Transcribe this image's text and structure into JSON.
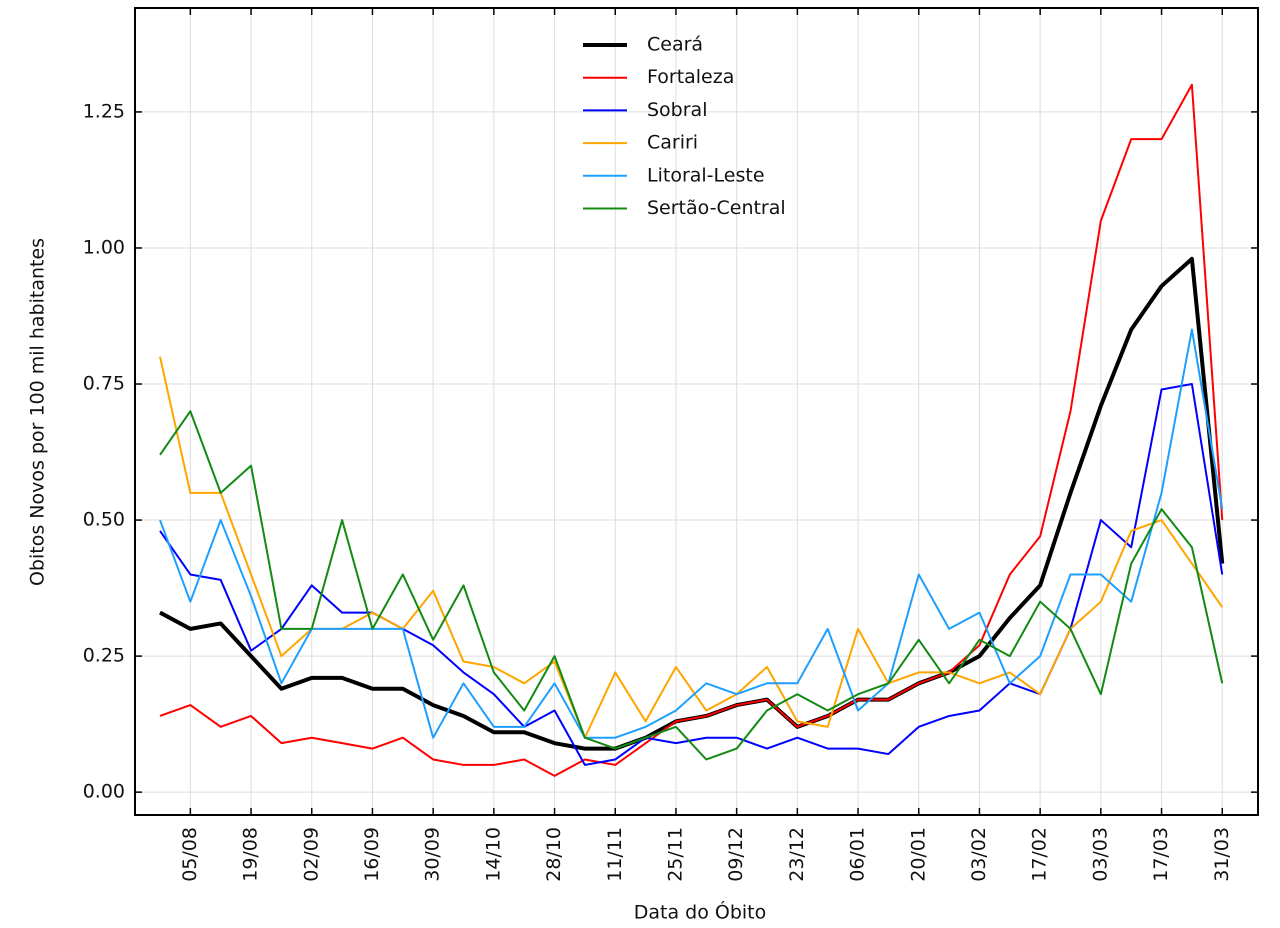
{
  "chart_data": {
    "type": "line",
    "x_label": "Data do Óbito",
    "y_label": "Obitos Novos por 100 mil habitantes",
    "categories": [
      null,
      "05/08",
      null,
      "19/08",
      null,
      "02/09",
      null,
      "16/09",
      null,
      "30/09",
      null,
      "14/10",
      null,
      "28/10",
      null,
      "11/11",
      null,
      "25/11",
      null,
      "09/12",
      null,
      "23/12",
      null,
      "06/01",
      null,
      "20/01",
      null,
      "03/02",
      null,
      "17/02",
      null,
      "03/03",
      null,
      "17/03",
      null,
      "31/03"
    ],
    "ylim": [
      -0.042,
      1.441
    ],
    "yticks": [
      {
        "value": 0,
        "label": "0.00"
      },
      {
        "value": 0.25,
        "label": "0.25"
      },
      {
        "value": 0.5,
        "label": "0.50"
      },
      {
        "value": 0.75,
        "label": "0.75"
      },
      {
        "value": 1,
        "label": "1.00"
      },
      {
        "value": 1.25,
        "label": "1.25"
      }
    ],
    "grid": true,
    "legend": "upper center",
    "series": [
      {
        "name": "Ceará",
        "color": "#000000",
        "values": [
          0.33,
          0.3,
          0.31,
          0.25,
          0.19,
          0.21,
          0.21,
          0.19,
          0.19,
          0.16,
          0.14,
          0.11,
          0.11,
          0.09,
          0.08,
          0.08,
          0.1,
          0.13,
          0.14,
          0.16,
          0.17,
          0.12,
          0.14,
          0.17,
          0.17,
          0.2,
          0.22,
          0.25,
          0.32,
          0.38,
          0.55,
          0.71,
          0.85,
          0.93,
          0.98,
          0.42
        ]
      },
      {
        "name": "Fortaleza",
        "color": "#ff0000",
        "values": [
          0.14,
          0.16,
          0.12,
          0.14,
          0.09,
          0.1,
          0.09,
          0.08,
          0.1,
          0.06,
          0.05,
          0.05,
          0.06,
          0.03,
          0.06,
          0.05,
          0.09,
          0.13,
          0.14,
          0.16,
          0.17,
          0.12,
          0.14,
          0.17,
          0.17,
          0.2,
          0.22,
          0.27,
          0.4,
          0.47,
          0.7,
          1.05,
          1.2,
          1.2,
          1.3,
          0.5
        ]
      },
      {
        "name": "Sobral",
        "color": "#0000ff",
        "values": [
          0.48,
          0.4,
          0.39,
          0.26,
          0.3,
          0.38,
          0.33,
          0.33,
          0.3,
          0.27,
          0.22,
          0.18,
          0.12,
          0.15,
          0.05,
          0.06,
          0.1,
          0.09,
          0.1,
          0.1,
          0.08,
          0.1,
          0.08,
          0.08,
          0.07,
          0.12,
          0.14,
          0.15,
          0.2,
          0.18,
          0.3,
          0.5,
          0.45,
          0.74,
          0.75,
          0.4
        ]
      },
      {
        "name": "Cariri",
        "color": "#ffa500",
        "values": [
          0.8,
          0.55,
          0.55,
          0.4,
          0.25,
          0.3,
          0.3,
          0.33,
          0.3,
          0.37,
          0.24,
          0.23,
          0.2,
          0.24,
          0.1,
          0.22,
          0.13,
          0.23,
          0.15,
          0.18,
          0.23,
          0.13,
          0.12,
          0.3,
          0.2,
          0.22,
          0.22,
          0.2,
          0.22,
          0.18,
          0.3,
          0.35,
          0.48,
          0.5,
          0.42,
          0.34
        ]
      },
      {
        "name": "Litoral-Leste",
        "color": "#1e9fff",
        "values": [
          0.5,
          0.35,
          0.5,
          0.36,
          0.2,
          0.3,
          0.3,
          0.3,
          0.3,
          0.1,
          0.2,
          0.12,
          0.12,
          0.2,
          0.1,
          0.1,
          0.12,
          0.15,
          0.2,
          0.18,
          0.2,
          0.2,
          0.3,
          0.15,
          0.2,
          0.4,
          0.3,
          0.33,
          0.2,
          0.25,
          0.4,
          0.4,
          0.35,
          0.55,
          0.85,
          0.52
        ]
      },
      {
        "name": "Sertão-Central",
        "color": "#138a13",
        "values": [
          0.62,
          0.7,
          0.55,
          0.6,
          0.3,
          0.3,
          0.5,
          0.3,
          0.4,
          0.28,
          0.38,
          0.22,
          0.15,
          0.25,
          0.1,
          0.08,
          0.1,
          0.12,
          0.06,
          0.08,
          0.15,
          0.18,
          0.15,
          0.18,
          0.2,
          0.28,
          0.2,
          0.28,
          0.25,
          0.35,
          0.3,
          0.18,
          0.42,
          0.52,
          0.45,
          0.2
        ]
      }
    ]
  }
}
